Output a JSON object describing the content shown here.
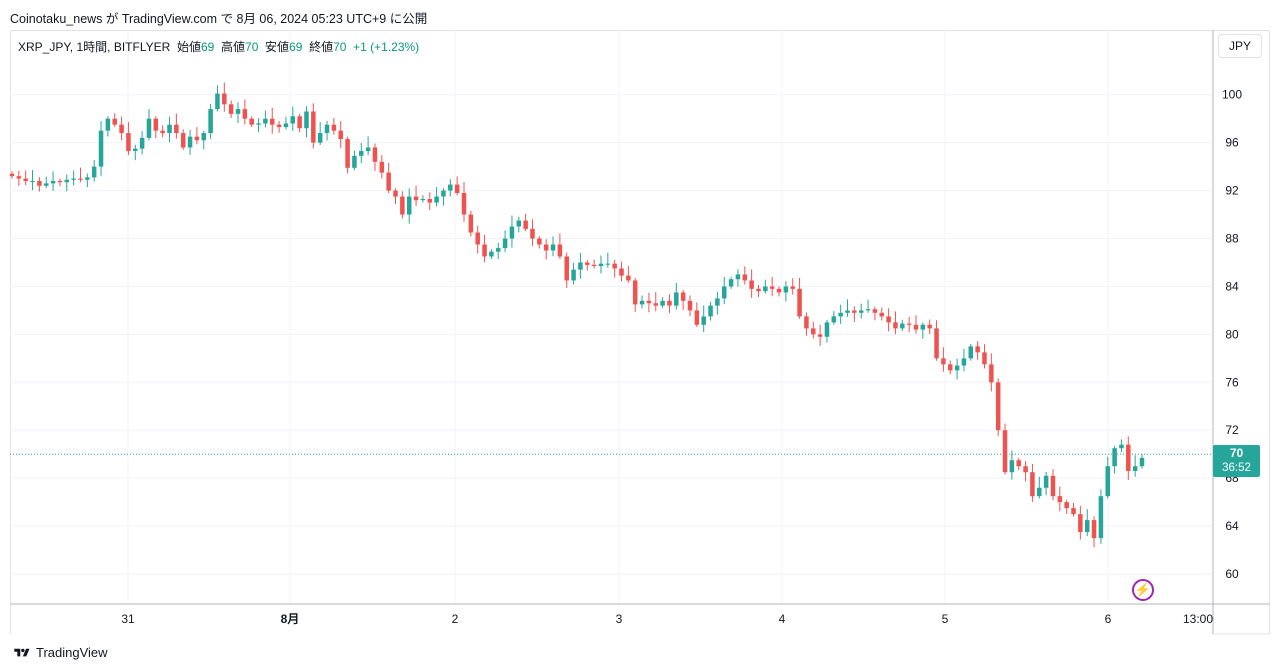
{
  "publish_line": "Coinotaku_news が TradingView.com で 8月 06, 2024 05:23 UTC+9 に公開",
  "legend": {
    "symbol": "XRP_JPY, 1時間, BITFLYER",
    "open_label": "始値",
    "open": "69",
    "high_label": "高値",
    "high": "70",
    "low_label": "安値",
    "low": "69",
    "close_label": "終値",
    "close": "70",
    "change": "+1 (+1.23%)"
  },
  "currency_button": "JPY",
  "last_price": {
    "price": "70",
    "countdown": "36:52"
  },
  "brand": "TradingView",
  "colors": {
    "up": "#26a69a",
    "down": "#ef5350",
    "grid": "#f0f3fa",
    "axis": "#787b86",
    "flash": "#9c27b0"
  },
  "chart_data": {
    "type": "candlestick",
    "symbol": "XRP_JPY",
    "interval": "1時間",
    "exchange": "BITFLYER",
    "y_axis": {
      "ticks": [
        60,
        64,
        68,
        72,
        76,
        80,
        84,
        88,
        92,
        96,
        100
      ],
      "range": [
        57.5,
        105.4
      ]
    },
    "x_axis": {
      "tick_labels": [
        "31",
        "8月",
        "2",
        "3",
        "4",
        "5",
        "6",
        "13:00"
      ]
    },
    "last_price": 70,
    "series_close": [
      93.2,
      93.0,
      92.8,
      92.8,
      92.4,
      92.6,
      92.8,
      92.7,
      92.9,
      93.0,
      92.9,
      93.1,
      94.0,
      97.0,
      98.0,
      97.5,
      96.8,
      95.3,
      95.5,
      96.4,
      98.0,
      97.0,
      96.8,
      97.5,
      96.8,
      95.6,
      96.5,
      96.2,
      96.8,
      98.8,
      100.1,
      99.2,
      98.4,
      98.8,
      98.0,
      97.5,
      97.6,
      98.0,
      97.5,
      97.3,
      97.6,
      98.2,
      97.2,
      98.6,
      96.0,
      96.8,
      97.5,
      97.0,
      96.3,
      93.9,
      94.9,
      95.3,
      95.6,
      94.4,
      93.5,
      92.0,
      91.5,
      90.0,
      91.5,
      91.2,
      91.3,
      91.0,
      91.5,
      92.0,
      92.5,
      91.8,
      90.0,
      88.5,
      87.5,
      86.5,
      86.9,
      87.2,
      88.0,
      89.0,
      89.5,
      88.8,
      88.0,
      87.5,
      87.0,
      87.5,
      86.5,
      84.5,
      85.4,
      86.0,
      85.8,
      85.7,
      85.9,
      85.9,
      85.5,
      84.9,
      84.5,
      82.5,
      82.8,
      82.6,
      82.4,
      82.8,
      82.4,
      83.5,
      82.8,
      82.0,
      80.8,
      81.5,
      82.4,
      83.0,
      84.0,
      84.6,
      85.0,
      84.5,
      83.8,
      83.6,
      84.0,
      83.8,
      83.5,
      84.0,
      83.8,
      81.5,
      80.5,
      80.0,
      79.8,
      81.0,
      81.5,
      81.8,
      82.0,
      81.8,
      82.0,
      82.1,
      81.8,
      81.5,
      81.0,
      80.5,
      80.9,
      80.8,
      80.4,
      80.8,
      80.5,
      78.0,
      77.5,
      77.0,
      77.4,
      78.0,
      79.0,
      78.5,
      77.5,
      76.0,
      72.0,
      68.5,
      69.5,
      69.0,
      68.5,
      66.5,
      67.2,
      68.2,
      66.5,
      66.0,
      65.5,
      65.0,
      63.5,
      64.5,
      63.0,
      66.5,
      69.0,
      70.5,
      70.8,
      68.6,
      69.0,
      69.7
    ]
  }
}
